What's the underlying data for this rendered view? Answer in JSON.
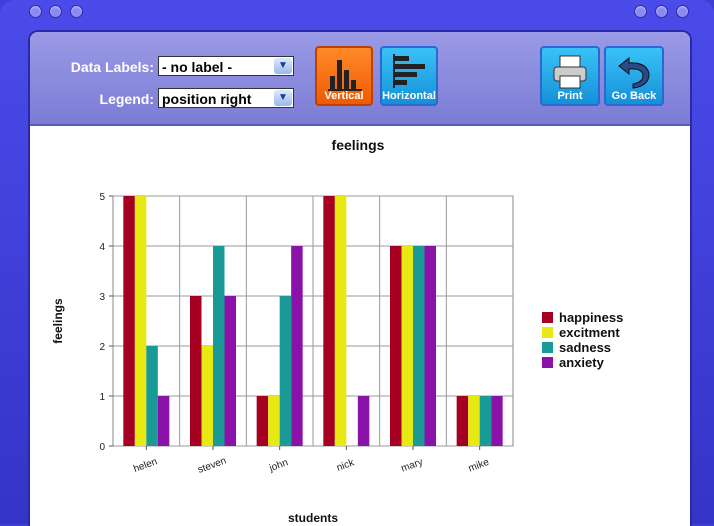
{
  "toolbar": {
    "data_labels_label": "Data Labels:",
    "data_labels_value": "- no label -",
    "legend_label": "Legend:",
    "legend_value": "position right",
    "vertical_label": "Vertical",
    "horizontal_label": "Horizontal",
    "print_label": "Print",
    "go_back_label": "Go Back"
  },
  "colors": {
    "accent_orange": "#ff6a00",
    "accent_blue": "#1aa8e8"
  },
  "chart_data": {
    "type": "bar",
    "title": "feelings",
    "xlabel": "students",
    "ylabel": "feelings",
    "ylim": [
      0,
      5
    ],
    "yticks": [
      0,
      1,
      2,
      3,
      4,
      5
    ],
    "grid": true,
    "legend_position": "right",
    "categories": [
      "helen",
      "steven",
      "john",
      "nick",
      "mary",
      "mike"
    ],
    "series": [
      {
        "name": "happiness",
        "color": "#a50021",
        "values": [
          5,
          3,
          1,
          5,
          4,
          1
        ]
      },
      {
        "name": "excitment",
        "color": "#e8e812",
        "values": [
          5,
          2,
          1,
          5,
          4,
          1
        ]
      },
      {
        "name": "sadness",
        "color": "#1a9a96",
        "values": [
          2,
          4,
          3,
          0,
          4,
          1
        ]
      },
      {
        "name": "anxiety",
        "color": "#8a12a8",
        "values": [
          1,
          3,
          4,
          1,
          4,
          1
        ]
      }
    ]
  }
}
